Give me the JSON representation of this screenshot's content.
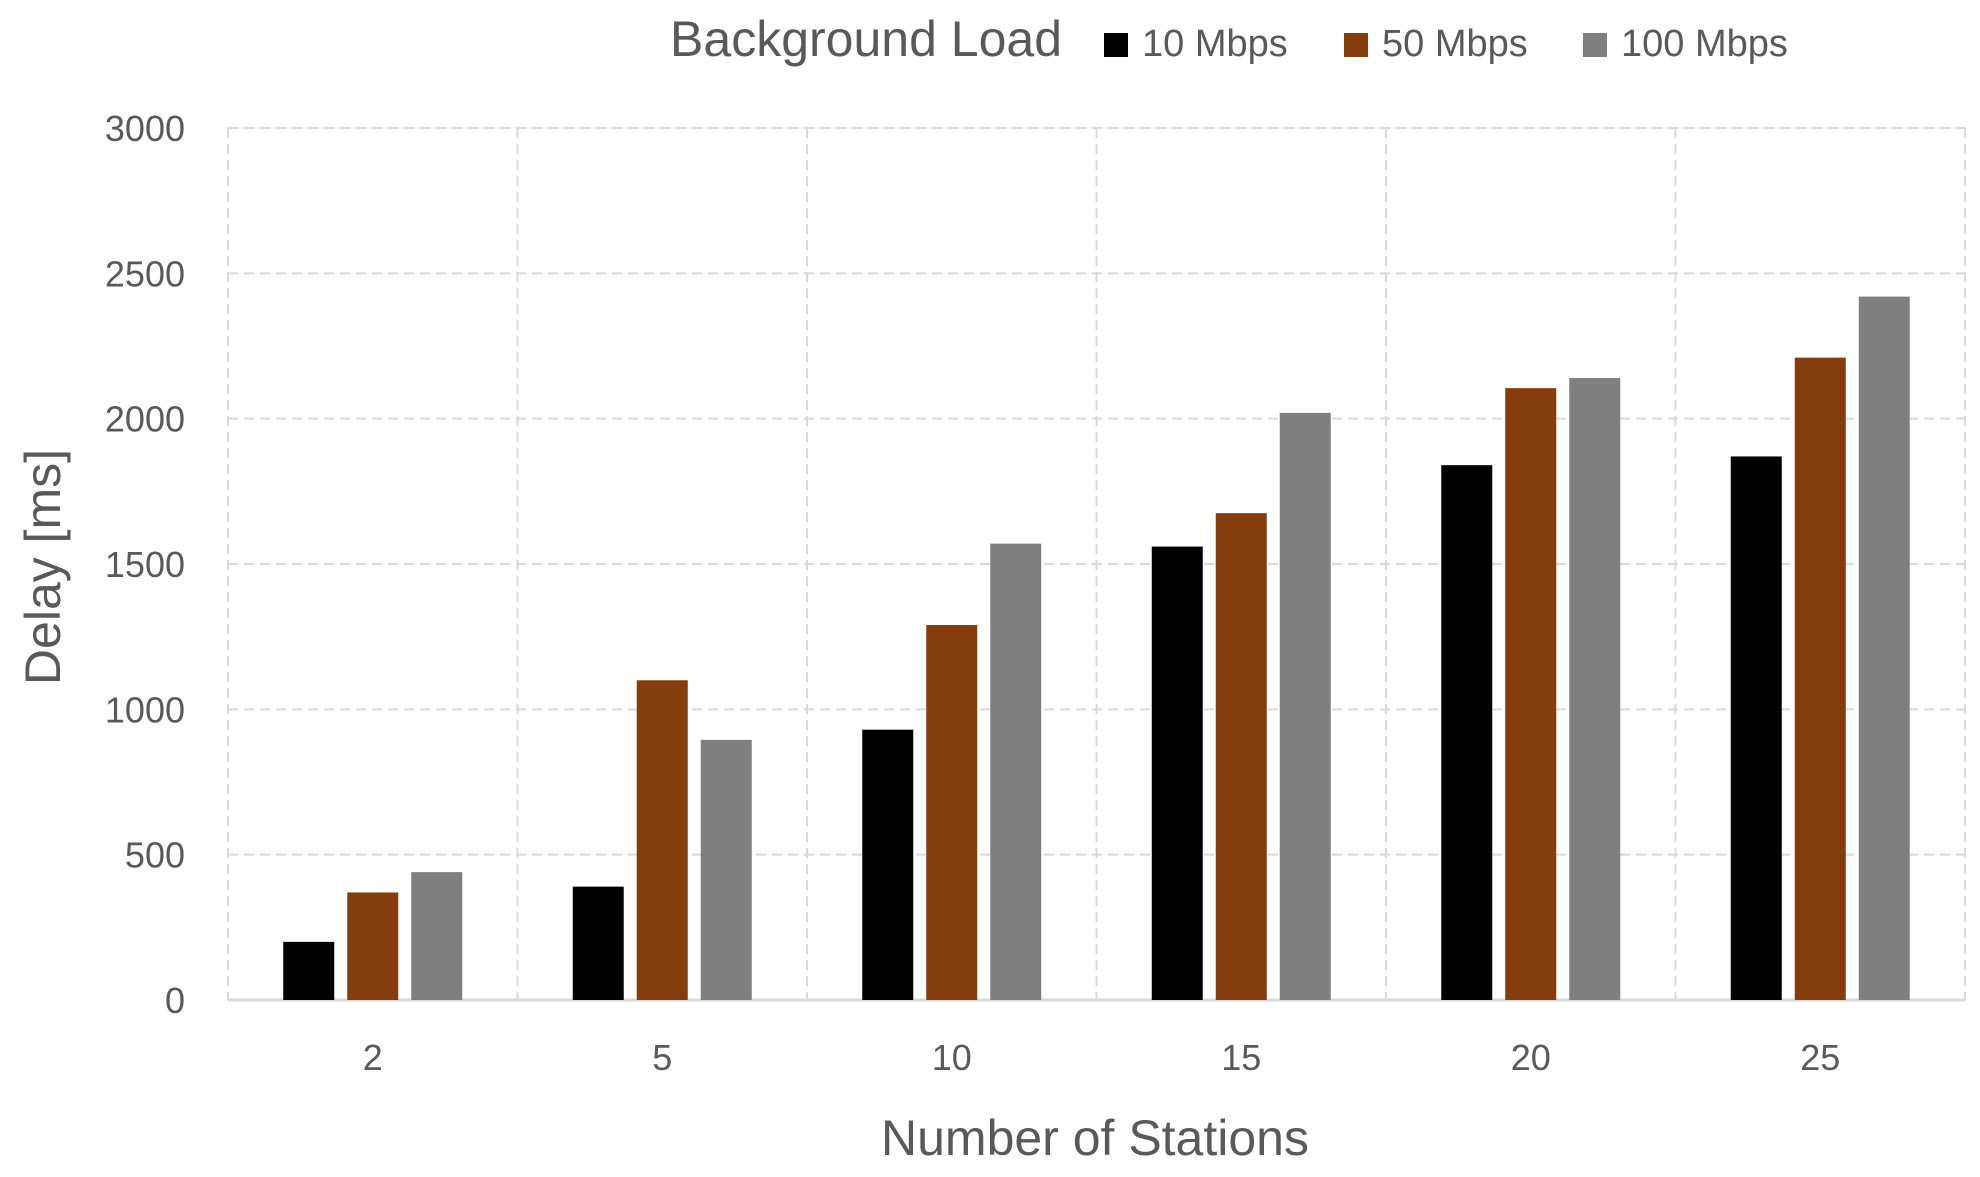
{
  "chart_data": {
    "type": "bar",
    "title": "",
    "xlabel": "Number of Stations",
    "ylabel": "Delay [ms]",
    "categories": [
      "2",
      "5",
      "10",
      "15",
      "20",
      "25"
    ],
    "ylim": [
      0,
      3000
    ],
    "yticks": [
      0,
      500,
      1000,
      1500,
      2000,
      2500,
      3000
    ],
    "grid": true,
    "legend": {
      "title": "Background Load",
      "placement": "top"
    },
    "series": [
      {
        "name": "10 Mbps",
        "color": "#000000",
        "values": [
          200,
          390,
          930,
          1560,
          1840,
          1870
        ]
      },
      {
        "name": "50 Mbps",
        "color": "#843c0c",
        "values": [
          370,
          1100,
          1290,
          1675,
          2105,
          2210
        ]
      },
      {
        "name": "100 Mbps",
        "color": "#7f7f7f",
        "values": [
          440,
          895,
          1570,
          2020,
          2140,
          2420
        ]
      }
    ]
  }
}
